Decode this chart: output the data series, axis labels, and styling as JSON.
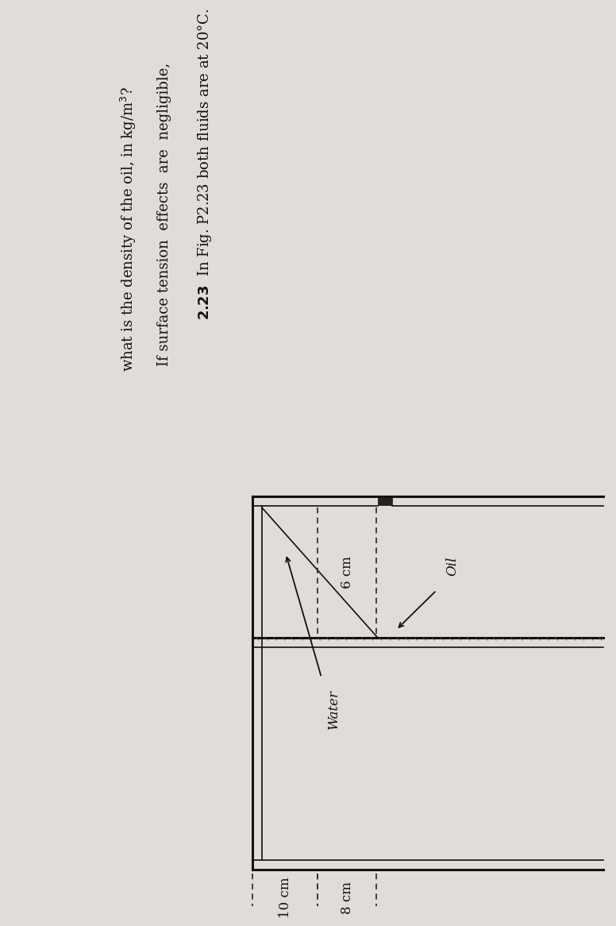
{
  "background_color": "#e0ddd8",
  "text_line1_bold": "2.23",
  "text_line1_rest": "  In Fig. P2.23 both fluids are at 20°C.",
  "text_line2": "If surface tension effects are negligible,",
  "text_line3": "what is the density of the oil, in kg/m",
  "label_oil": "Oil",
  "label_water": "Water",
  "label_6cm": "6 cm",
  "label_8cm": "8 cm",
  "label_10cm": "10 cm",
  "line_color": "#111111",
  "dash_color": "#333333",
  "bg_color": "#e0ddd8",
  "text_color": "#111111"
}
